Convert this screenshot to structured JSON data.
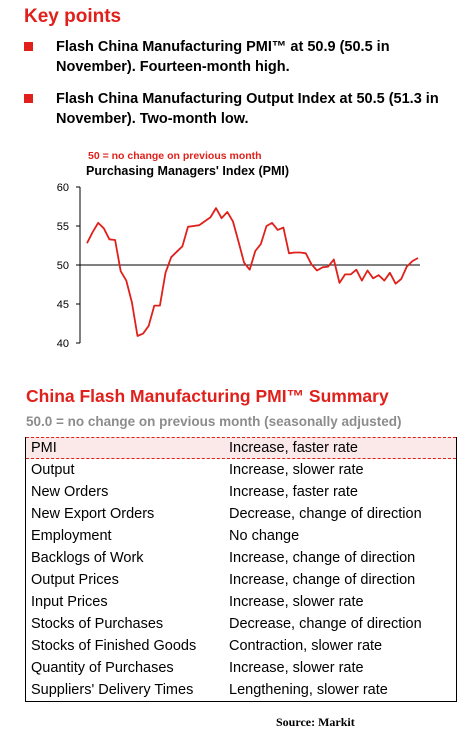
{
  "key_points": {
    "title": "Key points",
    "bullets": [
      "Flash China Manufacturing PMI™ at 50.9 (50.5 in November). Fourteen-month high.",
      "Flash China Manufacturing Output Index at 50.5 (51.3 in November). Two-month low."
    ]
  },
  "colors": {
    "accent": "#e0201b",
    "line": "#e0201b",
    "axis": "#000000",
    "subtitle_gray": "#8c8c8c",
    "highlight_bg": "#fbe9ea"
  },
  "chart_data": {
    "type": "line",
    "annotation": "50 =  no change on previous month",
    "title": "Purchasing Managers' Index (PMI)",
    "ylim": [
      40,
      60
    ],
    "yticks": [
      40,
      45,
      50,
      55,
      60
    ],
    "reference_line": 50,
    "grid": false,
    "series": [
      {
        "values": [
          52.8,
          54.2,
          55.4,
          54.7,
          53.3,
          53.2,
          49.2,
          48.0,
          45.2,
          40.9,
          41.2,
          42.2,
          44.8,
          44.8,
          49.0,
          51.0,
          51.7,
          52.4,
          54.9,
          55.0,
          55.1,
          55.6,
          56.1,
          57.3,
          56.0,
          56.8,
          55.6,
          53.0,
          50.3,
          49.4,
          51.8,
          52.7,
          55.0,
          55.4,
          54.5,
          54.8,
          51.5,
          51.6,
          51.6,
          51.5,
          50.1,
          49.3,
          49.7,
          49.8,
          50.7,
          47.7,
          48.8,
          48.8,
          49.4,
          48.0,
          49.3,
          48.3,
          48.7,
          48.0,
          49.0,
          47.6,
          48.2,
          49.8,
          50.5,
          50.9
        ]
      }
    ]
  },
  "summary": {
    "title": "China Flash Manufacturing PMI™ Summary",
    "subtitle": "50.0 = no change on previous month (seasonally adjusted)",
    "rows": [
      {
        "item": "PMI",
        "status": "Increase, faster rate"
      },
      {
        "item": "Output",
        "status": "Increase, slower rate"
      },
      {
        "item": "New Orders",
        "status": "Increase, faster rate"
      },
      {
        "item": "New Export Orders",
        "status": "Decrease, change of direction"
      },
      {
        "item": "Employment",
        "status": "No change"
      },
      {
        "item": "Backlogs of Work",
        "status": "Increase, change of direction"
      },
      {
        "item": "Output Prices",
        "status": "Increase, change of direction"
      },
      {
        "item": "Input Prices",
        "status": "Increase, slower rate"
      },
      {
        "item": "Stocks of Purchases",
        "status": "Decrease, change of direction"
      },
      {
        "item": "Stocks of Finished Goods",
        "status": "Contraction, slower rate"
      },
      {
        "item": "Quantity of Purchases",
        "status": "Increase, slower rate"
      },
      {
        "item": "Suppliers' Delivery Times",
        "status": "Lengthening, slower rate"
      }
    ]
  },
  "source": "Source:  Markit"
}
